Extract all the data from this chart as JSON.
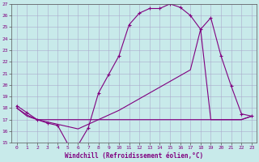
{
  "xlabel": "Windchill (Refroidissement éolien,°C)",
  "background_color": "#c8eaea",
  "line_color": "#800080",
  "grid_color": "#aaaacc",
  "xlim": [
    -0.5,
    23.5
  ],
  "ylim": [
    15,
    27
  ],
  "yticks": [
    15,
    16,
    17,
    18,
    19,
    20,
    21,
    22,
    23,
    24,
    25,
    26,
    27
  ],
  "xticks": [
    0,
    1,
    2,
    3,
    4,
    5,
    6,
    7,
    8,
    9,
    10,
    11,
    12,
    13,
    14,
    15,
    16,
    17,
    18,
    19,
    20,
    21,
    22,
    23
  ],
  "line1_x": [
    0,
    1,
    2,
    3,
    4,
    5,
    6,
    7,
    8,
    9,
    10,
    11,
    12,
    13,
    14,
    15,
    16,
    17,
    18,
    19,
    20,
    21,
    22,
    23
  ],
  "line1_y": [
    18.2,
    17.6,
    17.0,
    16.7,
    16.5,
    14.9,
    14.8,
    16.3,
    19.3,
    20.9,
    22.5,
    25.2,
    26.2,
    26.6,
    26.6,
    27.0,
    26.7,
    26.0,
    24.8,
    25.8,
    22.5,
    19.9,
    17.5,
    17.3
  ],
  "line2_x": [
    0,
    1,
    2,
    3,
    4,
    5,
    6,
    7,
    8,
    9,
    10,
    11,
    12,
    13,
    14,
    15,
    16,
    17,
    18,
    19,
    20,
    21,
    22,
    23
  ],
  "line2_y": [
    18.0,
    17.4,
    17.0,
    16.8,
    16.6,
    16.4,
    16.2,
    16.6,
    17.0,
    17.4,
    17.8,
    18.3,
    18.8,
    19.3,
    19.8,
    20.3,
    20.8,
    21.3,
    24.8,
    17.0,
    17.0,
    17.0,
    17.0,
    17.3
  ],
  "line3_x": [
    0,
    1,
    2,
    3,
    4,
    5,
    6,
    7,
    8,
    9,
    10,
    11,
    12,
    13,
    14,
    15,
    16,
    17,
    18,
    19,
    20,
    21,
    22,
    23
  ],
  "line3_y": [
    18.0,
    17.3,
    17.0,
    17.0,
    17.0,
    17.0,
    17.0,
    17.0,
    17.0,
    17.0,
    17.0,
    17.0,
    17.0,
    17.0,
    17.0,
    17.0,
    17.0,
    17.0,
    17.0,
    17.0,
    17.0,
    17.0,
    17.0,
    17.3
  ]
}
